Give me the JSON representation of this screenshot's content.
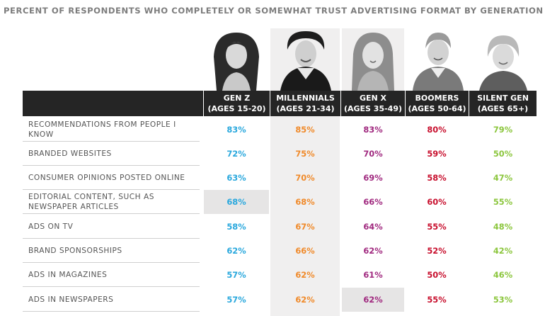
{
  "title": "PERCENT OF RESPONDENTS WHO COMPLETELY OR SOMEWHAT TRUST ADVERTISING FORMAT BY GENERATION",
  "colors": {
    "gen_z": "#2aa8dd",
    "millennials": "#f08a2a",
    "gen_x": "#a0297f",
    "boomers": "#c8102e",
    "silent_gen": "#8cc63e"
  },
  "chart_data": {
    "type": "table",
    "title": "PERCENT OF RESPONDENTS WHO COMPLETELY OR SOMEWHAT TRUST ADVERTISING FORMAT BY GENERATION",
    "columns": [
      {
        "key": "gen_z",
        "name": "GEN Z",
        "ages": "(AGES 15-20)"
      },
      {
        "key": "millennials",
        "name": "MILLENNIALS",
        "ages": "(AGES 21-34)"
      },
      {
        "key": "gen_x",
        "name": "GEN X",
        "ages": "(AGES 35-49)"
      },
      {
        "key": "boomers",
        "name": "BOOMERS",
        "ages": "(AGES 50-64)"
      },
      {
        "key": "silent_gen",
        "name": "SILENT GEN",
        "ages": "(AGES 65+)"
      }
    ],
    "rows": [
      {
        "label": "RECOMMENDATIONS FROM PEOPLE I KNOW",
        "values": [
          "83%",
          "85%",
          "83%",
          "80%",
          "79%"
        ]
      },
      {
        "label": "BRANDED WEBSITES",
        "values": [
          "72%",
          "75%",
          "70%",
          "59%",
          "50%"
        ]
      },
      {
        "label": "CONSUMER OPINIONS POSTED ONLINE",
        "values": [
          "63%",
          "70%",
          "69%",
          "58%",
          "47%"
        ]
      },
      {
        "label": "EDITORIAL CONTENT, SUCH AS NEWSPAPER ARTICLES",
        "values": [
          "68%",
          "68%",
          "66%",
          "60%",
          "55%"
        ]
      },
      {
        "label": "ADS ON TV",
        "values": [
          "58%",
          "67%",
          "64%",
          "55%",
          "48%"
        ]
      },
      {
        "label": "BRAND SPONSORSHIPS",
        "values": [
          "62%",
          "66%",
          "62%",
          "52%",
          "42%"
        ]
      },
      {
        "label": "ADS IN MAGAZINES",
        "values": [
          "57%",
          "62%",
          "61%",
          "50%",
          "46%"
        ]
      },
      {
        "label": "ADS IN NEWSPAPERS",
        "values": [
          "57%",
          "62%",
          "62%",
          "55%",
          "53%"
        ]
      }
    ]
  }
}
